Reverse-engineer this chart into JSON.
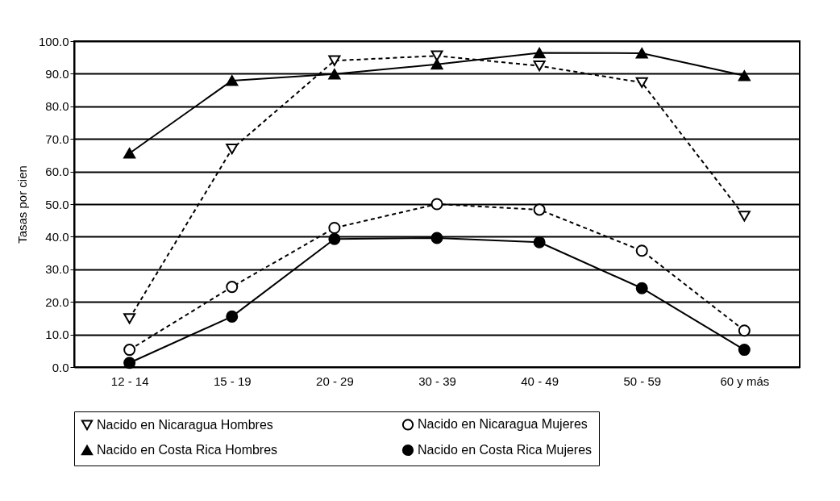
{
  "chart_data": {
    "type": "line",
    "ylabel": "Tasas por cien",
    "categories": [
      "12 - 14",
      "15 - 19",
      "20 - 29",
      "30 - 39",
      "40 - 49",
      "50 - 59",
      "60 y más"
    ],
    "series": [
      {
        "name": "Nacido en Nicaragua Hombres",
        "color": "#000000",
        "marker": "triangle-down",
        "line_style": "dashed",
        "values": [
          14.9,
          66.9,
          94.0,
          95.5,
          92.4,
          87.3,
          46.3
        ]
      },
      {
        "name": "Nacido en Nicaragua Mujeres",
        "color": "#000000",
        "marker": "circle",
        "line_style": "dashed",
        "values": [
          5.3,
          24.6,
          42.7,
          50.0,
          48.3,
          35.7,
          11.2
        ]
      },
      {
        "name": "Nacido en Costa Rica Hombres",
        "color": "#000000",
        "marker": "triangle-up",
        "line_style": "solid",
        "values": [
          65.6,
          87.9,
          89.9,
          92.9,
          96.4,
          96.3,
          89.4
        ]
      },
      {
        "name": "Nacido en Costa Rica Mujeres",
        "color": "#000000",
        "marker": "circle",
        "line_style": "solid",
        "values": [
          1.3,
          15.5,
          39.3,
          39.6,
          38.3,
          24.2,
          5.3
        ]
      }
    ],
    "ylim": [
      0,
      100
    ],
    "yticks": [
      {
        "value": 0,
        "label": "0.0"
      },
      {
        "value": 10,
        "label": "10.0"
      },
      {
        "value": 20,
        "label": "20.0"
      },
      {
        "value": 30,
        "label": "30.0"
      },
      {
        "value": 40,
        "label": "40.0"
      },
      {
        "value": 50,
        "label": "50.0"
      },
      {
        "value": 60,
        "label": "60.0"
      },
      {
        "value": 70,
        "label": "70.0"
      },
      {
        "value": 80,
        "label": "80.0"
      },
      {
        "value": 90,
        "label": "90.0"
      },
      {
        "value": 100,
        "label": "100.0"
      }
    ],
    "grid": "y",
    "legend": "bottom"
  }
}
